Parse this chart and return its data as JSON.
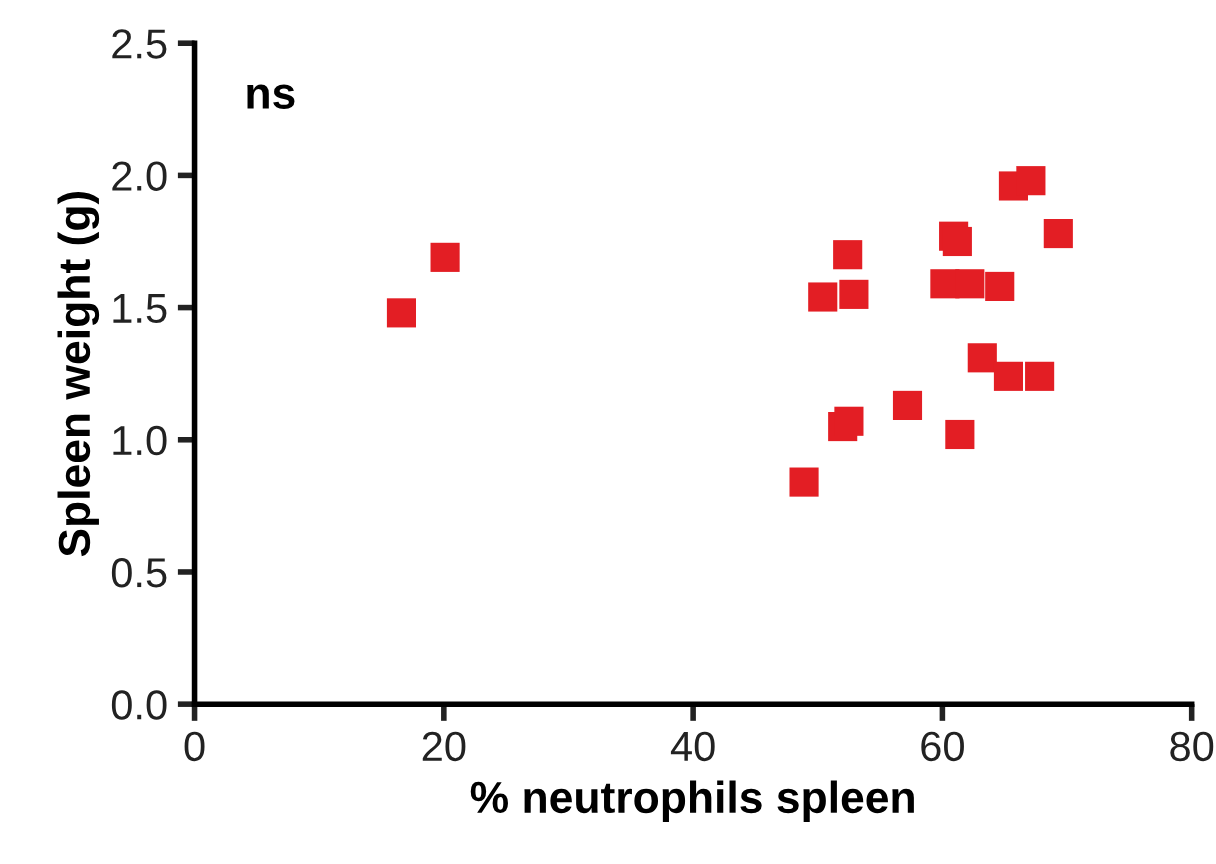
{
  "chart_data": {
    "type": "scatter",
    "xlabel": "% neutrophils spleen",
    "ylabel": "Spleen weight (g)",
    "annotations": [
      "ns"
    ],
    "series": [
      {
        "color": "#e31e24",
        "x": [
          16.6,
          20.1,
          48.9,
          52.0,
          52.5,
          57.2,
          61.4,
          63.2,
          65.3,
          67.8,
          50.4,
          52.9,
          52.4,
          60.2,
          62.2,
          64.6,
          60.9,
          61.2,
          69.3,
          65.7,
          67.1
        ],
        "values": [
          1.48,
          1.69,
          0.84,
          1.05,
          1.07,
          1.13,
          1.02,
          1.31,
          1.24,
          1.24,
          1.54,
          1.55,
          1.7,
          1.59,
          1.59,
          1.58,
          1.77,
          1.75,
          1.78,
          1.96,
          1.98
        ]
      }
    ],
    "xlim": [
      0,
      80
    ],
    "xticks": [
      0,
      20,
      40,
      60,
      80
    ],
    "ylim": [
      0,
      2.5
    ],
    "yticks": [
      {
        "value": 0,
        "label": "0.0"
      },
      {
        "value": 0.5,
        "label": "0.5"
      },
      {
        "value": 1,
        "label": "1.0"
      },
      {
        "value": 1.5,
        "label": "1.5"
      },
      {
        "value": 2,
        "label": "2.0"
      },
      {
        "value": 2.5,
        "label": "2.5"
      }
    ],
    "marker": "square",
    "grid": false,
    "legend": false
  }
}
